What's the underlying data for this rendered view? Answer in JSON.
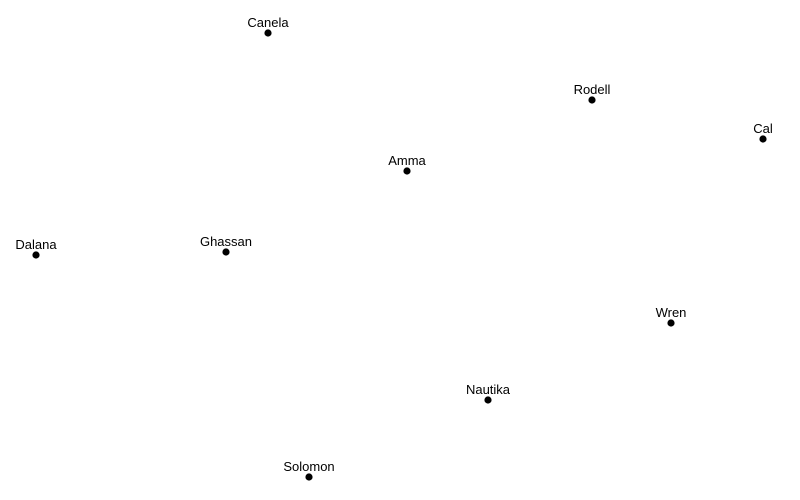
{
  "diagram": {
    "type": "point-map",
    "dot_color": "#000000",
    "label_color": "#000000",
    "background": "#ffffff",
    "nodes": [
      {
        "id": "canela",
        "label": "Canela"
      },
      {
        "id": "rodell",
        "label": "Rodell"
      },
      {
        "id": "cal",
        "label": "Cal"
      },
      {
        "id": "amma",
        "label": "Amma"
      },
      {
        "id": "dalana",
        "label": "Dalana"
      },
      {
        "id": "ghassan",
        "label": "Ghassan"
      },
      {
        "id": "wren",
        "label": "Wren"
      },
      {
        "id": "nautika",
        "label": "Nautika"
      },
      {
        "id": "solomon",
        "label": "Solomon"
      }
    ]
  }
}
